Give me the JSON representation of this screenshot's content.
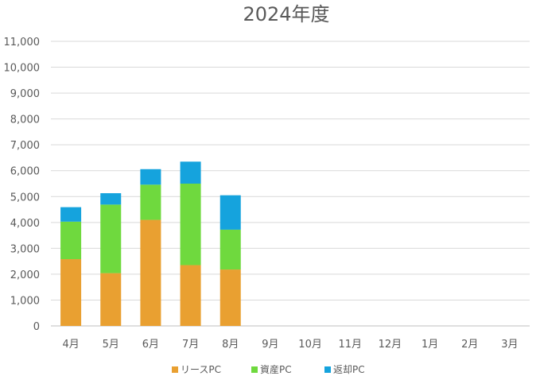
{
  "chart_data": {
    "type": "bar",
    "stacked": true,
    "title": "2024年度",
    "xlabel": "",
    "ylabel": "",
    "categories": [
      "4月",
      "5月",
      "6月",
      "7月",
      "8月",
      "9月",
      "10月",
      "11月",
      "12月",
      "1月",
      "2月",
      "3月"
    ],
    "ylim": [
      0,
      11000
    ],
    "yticks": [
      0,
      1000,
      2000,
      3000,
      4000,
      5000,
      6000,
      7000,
      8000,
      9000,
      10000,
      11000
    ],
    "ytick_labels": [
      "0",
      "1,000",
      "2,000",
      "3,000",
      "4,000",
      "5,000",
      "6,000",
      "7,000",
      "8,000",
      "9,000",
      "10,000",
      "11,000"
    ],
    "grid": true,
    "legend_position": "bottom",
    "series": [
      {
        "name": "リースPC",
        "color": "#E9A031",
        "values": [
          2580,
          2040,
          4100,
          2350,
          2180,
          null,
          null,
          null,
          null,
          null,
          null,
          null
        ]
      },
      {
        "name": "資産PC",
        "color": "#6FD93E",
        "values": [
          1450,
          2650,
          1360,
          3150,
          1540,
          null,
          null,
          null,
          null,
          null,
          null,
          null
        ]
      },
      {
        "name": "返却PC",
        "color": "#15A3DD",
        "values": [
          560,
          440,
          600,
          850,
          1330,
          null,
          null,
          null,
          null,
          null,
          null,
          null
        ]
      }
    ]
  }
}
